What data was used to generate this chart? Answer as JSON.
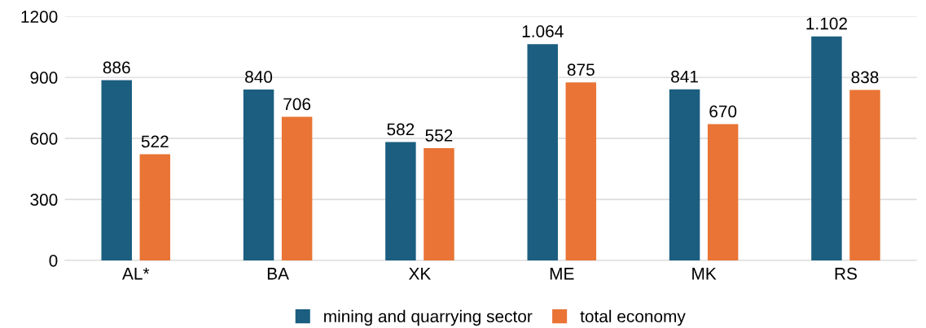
{
  "chart_data": {
    "type": "bar",
    "categories": [
      "AL*",
      "BA",
      "XK",
      "ME",
      "MK",
      "RS"
    ],
    "series": [
      {
        "name": "mining and quarrying sector",
        "color": "#1b5e80",
        "values": [
          886,
          840,
          582,
          1064,
          841,
          1102
        ],
        "value_labels": [
          "886",
          "840",
          "582",
          "1.064",
          "841",
          "1.102"
        ]
      },
      {
        "name": "total economy",
        "color": "#e97435",
        "values": [
          522,
          706,
          552,
          875,
          670,
          838
        ],
        "value_labels": [
          "522",
          "706",
          "552",
          "875",
          "670",
          "838"
        ]
      }
    ],
    "ylim": [
      0,
      1200
    ],
    "yticks": [
      0,
      300,
      600,
      900,
      1200
    ],
    "grid": "y",
    "legend": "bottom"
  }
}
